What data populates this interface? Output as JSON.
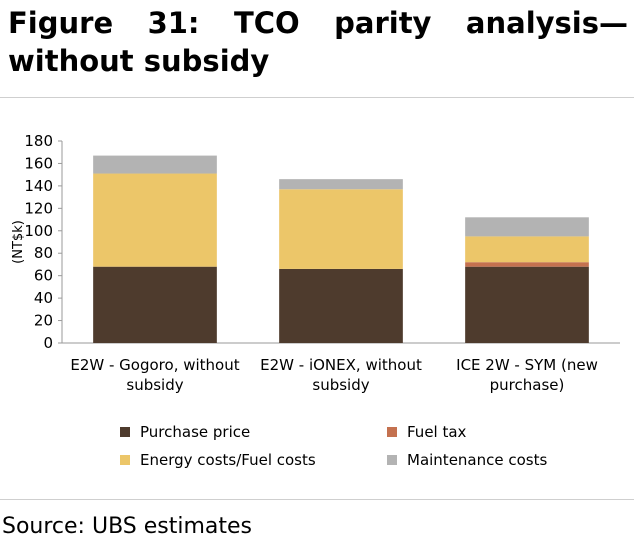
{
  "figure": {
    "title": "Figure 31: TCO parity analysis—without subsidy",
    "source": "Source: UBS estimates"
  },
  "chart_data": {
    "type": "bar",
    "stacked": true,
    "title": "",
    "xlabel": "",
    "ylabel": "(NT$k)",
    "ylim": [
      0,
      180
    ],
    "yticks": [
      0,
      20,
      40,
      60,
      80,
      100,
      120,
      140,
      160,
      180
    ],
    "grid": false,
    "legend_position": "bottom",
    "categories": [
      [
        "E2W - Gogoro, without",
        "subsidy"
      ],
      [
        "E2W - iONEX, without",
        "subsidy"
      ],
      [
        "ICE 2W - SYM (new",
        "purchase)"
      ]
    ],
    "series": [
      {
        "name": "Purchase price",
        "color": "#4e3b2d",
        "values": [
          68,
          66,
          68
        ]
      },
      {
        "name": "Fuel tax",
        "color": "#c4714f",
        "values": [
          0,
          0,
          4
        ]
      },
      {
        "name": "Energy costs/Fuel costs",
        "color": "#ecc669",
        "values": [
          83,
          71,
          23
        ]
      },
      {
        "name": "Maintenance costs",
        "color": "#b3b3b3",
        "values": [
          16,
          9,
          17
        ]
      }
    ],
    "legend_order": [
      "Purchase price",
      "Fuel tax",
      "Energy costs/Fuel costs",
      "Maintenance costs"
    ]
  }
}
